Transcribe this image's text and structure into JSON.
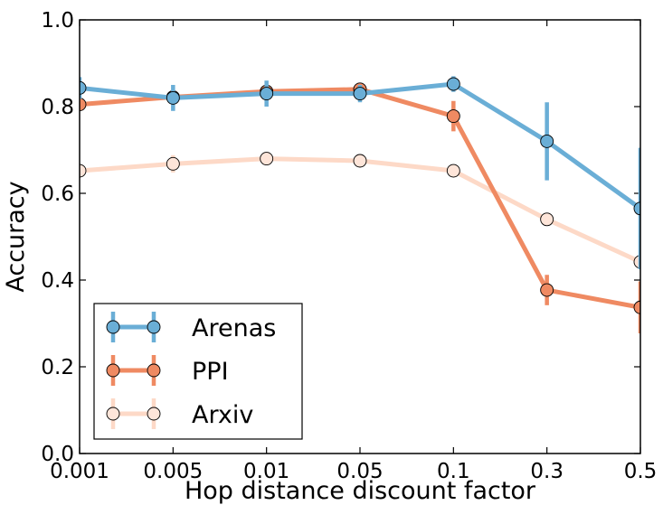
{
  "chart_data": {
    "type": "line",
    "title": "",
    "xlabel": "Hop distance discount factor",
    "ylabel": "Accuracy",
    "categories": [
      "0.001",
      "0.005",
      "0.01",
      "0.05",
      "0.1",
      "0.3",
      "0.5"
    ],
    "ylim": [
      0.0,
      1.0
    ],
    "yticks": [
      "0.0",
      "0.2",
      "0.4",
      "0.6",
      "0.8",
      "1.0"
    ],
    "legend_position": "bottom-left",
    "series": [
      {
        "name": "Arenas",
        "color": "#6aaed6",
        "marker_color": "#6aaed6",
        "values": [
          0.843,
          0.82,
          0.83,
          0.83,
          0.852,
          0.72,
          0.565
        ],
        "errors": [
          0.025,
          0.03,
          0.03,
          0.02,
          0.018,
          0.09,
          0.14
        ]
      },
      {
        "name": "PPI",
        "color": "#ef8a62",
        "marker_color": "#ef8a62",
        "values": [
          0.805,
          0.822,
          0.835,
          0.84,
          0.778,
          0.377,
          0.337
        ],
        "errors": [
          0.012,
          0.012,
          0.012,
          0.012,
          0.035,
          0.035,
          0.06
        ]
      },
      {
        "name": "Arxiv",
        "color": "#fdd9c7",
        "marker_color": "#fee5d9",
        "values": [
          0.652,
          0.668,
          0.68,
          0.675,
          0.652,
          0.54,
          0.442
        ],
        "errors": [
          0.012,
          0.02,
          0.015,
          0.012,
          0.012,
          0.015,
          0.012
        ]
      }
    ]
  }
}
